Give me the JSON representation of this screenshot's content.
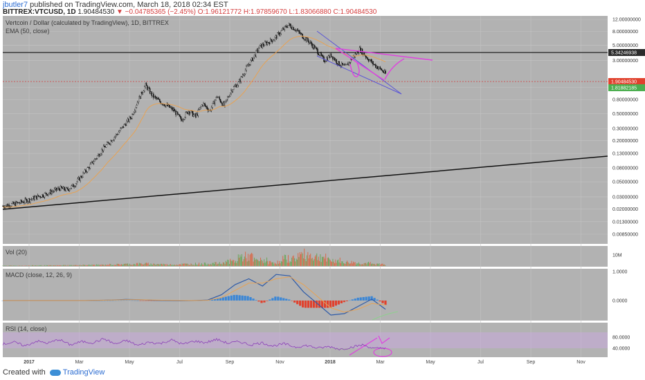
{
  "header": {
    "user": "jbutler7",
    "published": "published on TradingView.com, March 18, 2018 02:34 EST",
    "symbol": "BITTREX:VTCUSD, 1D",
    "price": "1.90484530",
    "change": "▼ −0.04785365 (−2.45%)",
    "ohlc": "O:1.96121772 H:1.97859670 L:1.83066880 C:1.90484530"
  },
  "panes": {
    "main_title": "Vertcoin / Dollar (calculated by TradingView), 1D, BITTREX",
    "ema_label": "EMA (50, close)",
    "vol_label": "Vol (20)",
    "macd_label": "MACD (close, 12, 26, 9)",
    "rsi_label": "RSI (14, close)"
  },
  "footer": {
    "created_with": "Created with",
    "brand": "TradingView"
  },
  "colors": {
    "plot_bg": "#b2b2b2",
    "candle": "#111111",
    "ema": "#e8a252",
    "annotation_pink": "#e040e0",
    "channel_blue": "#5a55d6",
    "macd_line": "#2d5aa8",
    "signal_line": "#e8a252",
    "hist_pos": "#3a86d6",
    "hist_neg": "#e0412d",
    "rsi_line": "#8b3fb8",
    "rsi_band": "#c9a9dd",
    "price_tag_red": "#e0412d",
    "price_tag_green": "#4caf50",
    "price_tag_dark": "#2b2b2b"
  },
  "chart_data": [
    {
      "type": "line",
      "subtype": "candlestick",
      "scale": "log",
      "x_tick_labels": [
        "2017",
        "Mar",
        "May",
        "Jul",
        "Sep",
        "Nov",
        "2018",
        "Mar",
        "May",
        "Jul",
        "Sep",
        "Nov"
      ],
      "y_tick_labels": [
        "12.00000000",
        "8.00000000",
        "5.00000000",
        "3.00000000",
        "1.20000000",
        "0.80000000",
        "0.50000000",
        "0.30000000",
        "0.20000000",
        "0.13000000",
        "0.08000000",
        "0.05000000",
        "0.03000000",
        "0.02000000",
        "0.01300000",
        "0.00850000"
      ],
      "price_tags": [
        {
          "label": "5.34246938",
          "kind": "level"
        },
        {
          "label": "1.90484530",
          "kind": "last"
        },
        {
          "label": "1.81882185",
          "kind": "ema"
        }
      ],
      "price_path": [
        [
          0,
          0.022
        ],
        [
          1,
          0.024
        ],
        [
          2,
          0.028
        ],
        [
          3,
          0.033
        ],
        [
          4,
          0.04
        ],
        [
          4.5,
          0.038
        ],
        [
          5,
          0.045
        ],
        [
          6,
          0.08
        ],
        [
          7,
          0.15
        ],
        [
          8,
          0.25
        ],
        [
          9,
          0.45
        ],
        [
          9.5,
          0.8
        ],
        [
          10,
          1.3
        ],
        [
          10.5,
          0.9
        ],
        [
          11,
          0.75
        ],
        [
          11.5,
          0.65
        ],
        [
          12,
          0.55
        ],
        [
          12.5,
          0.4
        ],
        [
          13,
          0.55
        ],
        [
          13.5,
          0.45
        ],
        [
          14,
          0.7
        ],
        [
          14.5,
          0.55
        ],
        [
          15,
          0.9
        ],
        [
          15.5,
          0.65
        ],
        [
          16,
          1.1
        ],
        [
          16.5,
          1.4
        ],
        [
          17,
          2.2
        ],
        [
          17.5,
          3.2
        ],
        [
          18,
          4.8
        ],
        [
          18.5,
          5.4
        ],
        [
          19,
          6.2
        ],
        [
          19.5,
          8
        ],
        [
          20,
          10
        ],
        [
          20.5,
          8.6
        ],
        [
          21,
          6.8
        ],
        [
          21.5,
          5.5
        ],
        [
          22,
          4.2
        ],
        [
          22.5,
          3.0
        ],
        [
          23,
          3.6
        ],
        [
          23.5,
          2.7
        ],
        [
          24,
          2.4
        ],
        [
          24.5,
          3.3
        ],
        [
          25,
          4.4
        ],
        [
          25.5,
          3.3
        ],
        [
          26,
          2.6
        ],
        [
          26.5,
          2.2
        ],
        [
          26.8,
          1.9
        ]
      ]
    },
    {
      "type": "bar",
      "name": "Volume",
      "y_tick_labels": [
        "10M"
      ],
      "values": [
        0.02,
        0.02,
        0.03,
        0.03,
        0.04,
        0.05,
        0.06,
        0.08,
        0.1,
        0.12,
        0.1,
        0.08,
        0.1,
        0.12,
        0.14,
        0.25,
        0.5,
        0.3,
        0.2,
        0.4,
        0.6,
        0.5,
        0.3,
        0.2,
        0.15,
        0.1,
        0.08
      ]
    },
    {
      "type": "line",
      "name": "MACD",
      "y_tick_labels": [
        "1.0000",
        "0.0000"
      ],
      "macd": [
        0,
        0,
        0,
        0,
        0,
        0,
        0,
        0.01,
        0.02,
        0.04,
        0.03,
        0.01,
        0,
        -0.01,
        0,
        0.02,
        0.2,
        0.55,
        0.75,
        0.5,
        0.9,
        0.85,
        0.3,
        -0.1,
        -0.5,
        -0.45,
        -0.2,
        0.05,
        -0.3
      ],
      "signal": [
        0,
        0,
        0,
        0,
        0,
        0,
        0,
        0.01,
        0.02,
        0.03,
        0.03,
        0.02,
        0.01,
        0,
        0,
        0.01,
        0.1,
        0.35,
        0.6,
        0.6,
        0.75,
        0.82,
        0.55,
        0.15,
        -0.25,
        -0.4,
        -0.3,
        -0.1,
        -0.15
      ]
    },
    {
      "type": "line",
      "name": "RSI",
      "y_tick_labels": [
        "80.0000",
        "40.0000"
      ],
      "values": [
        55,
        62,
        48,
        66,
        58,
        72,
        52,
        64,
        60,
        74,
        55,
        68,
        50,
        62,
        57,
        70,
        54,
        66,
        60,
        72,
        58,
        64,
        52,
        60,
        48,
        56,
        44,
        50,
        40,
        46,
        36,
        44,
        52,
        38,
        42
      ]
    }
  ]
}
